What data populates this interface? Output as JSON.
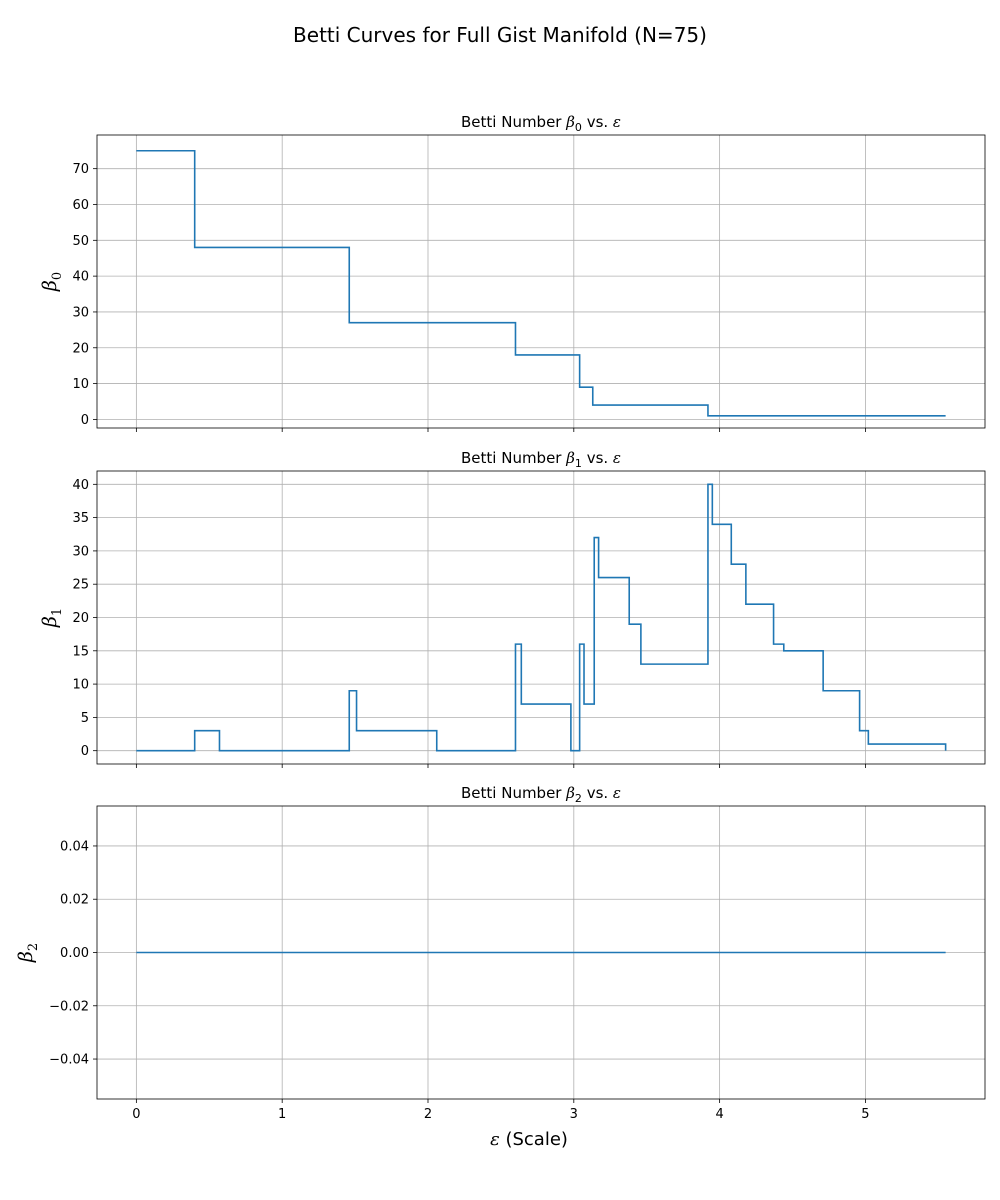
{
  "figure": {
    "title": "Betti Curves for Full Gist Manifold (N=75)"
  },
  "chart_data": [
    {
      "type": "line",
      "step": "post",
      "title": "Betti Number β0 vs. ε",
      "title_text": "Betti Number ",
      "title_symbol": "β",
      "title_sub": "0",
      "title_vs": " vs. ",
      "title_eps": "ε",
      "ylabel": "β",
      "ylabel_sub": "0",
      "xlabel": "",
      "xlim": [
        -0.27,
        5.82
      ],
      "ylim": [
        -2.4,
        79.4
      ],
      "yticks": [
        0,
        10,
        20,
        30,
        40,
        50,
        60,
        70
      ],
      "xticks": [
        0,
        1,
        2,
        3,
        4,
        5
      ],
      "show_xtick_labels": false,
      "grid": true,
      "color": "#1f77b4",
      "series": [
        {
          "x": [
            0,
            0.4,
            1.46,
            2.6,
            3.04,
            3.13,
            3.92,
            5.55
          ],
          "y": [
            75,
            48,
            27,
            18,
            9,
            4,
            1,
            1
          ]
        }
      ]
    },
    {
      "type": "line",
      "step": "post",
      "title": "Betti Number β1 vs. ε",
      "title_text": "Betti Number ",
      "title_symbol": "β",
      "title_sub": "1",
      "title_vs": " vs. ",
      "title_eps": "ε",
      "ylabel": "β",
      "ylabel_sub": "1",
      "xlabel": "",
      "xlim": [
        -0.27,
        5.82
      ],
      "ylim": [
        -2.0,
        42.0
      ],
      "yticks": [
        0,
        5,
        10,
        15,
        20,
        25,
        30,
        35,
        40
      ],
      "xticks": [
        0,
        1,
        2,
        3,
        4,
        5
      ],
      "show_xtick_labels": false,
      "grid": true,
      "color": "#1f77b4",
      "series": [
        {
          "x": [
            0,
            0.4,
            0.57,
            1.46,
            1.51,
            2.06,
            2.6,
            2.64,
            2.98,
            3.04,
            3.07,
            3.14,
            3.17,
            3.38,
            3.46,
            3.92,
            3.95,
            4.08,
            4.18,
            4.37,
            4.44,
            4.71,
            4.96,
            5.02,
            5.55
          ],
          "y": [
            0,
            3,
            0,
            9,
            3,
            0,
            16,
            7,
            0,
            16,
            7,
            32,
            26,
            19,
            13,
            40,
            34,
            28,
            22,
            16,
            15,
            9,
            3,
            1,
            0
          ]
        }
      ]
    },
    {
      "type": "line",
      "step": "post",
      "title": "Betti Number β2 vs. ε",
      "title_text": "Betti Number ",
      "title_symbol": "β",
      "title_sub": "2",
      "title_vs": " vs. ",
      "title_eps": "ε",
      "ylabel": "β",
      "ylabel_sub": "2",
      "xlabel": "ε (Scale)",
      "xlabel_symbol": "ε",
      "xlabel_text": " (Scale)",
      "xlim": [
        -0.27,
        5.82
      ],
      "ylim": [
        -0.055,
        0.055
      ],
      "yticks": [
        -0.04,
        -0.02,
        0.0,
        0.02,
        0.04
      ],
      "ytick_labels": [
        "−0.04",
        "−0.02",
        "0.00",
        "0.02",
        "0.04"
      ],
      "xticks": [
        0,
        1,
        2,
        3,
        4,
        5
      ],
      "show_xtick_labels": true,
      "grid": true,
      "color": "#1f77b4",
      "series": [
        {
          "x": [
            0,
            5.55
          ],
          "y": [
            0,
            0
          ]
        }
      ]
    }
  ]
}
